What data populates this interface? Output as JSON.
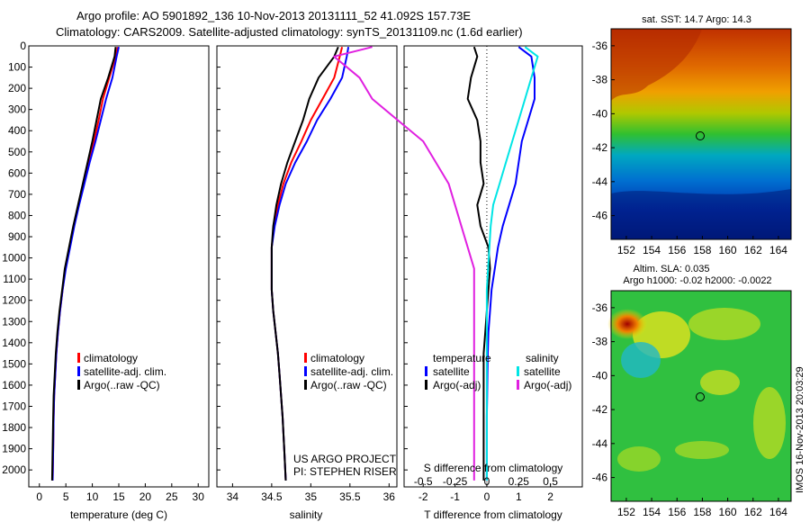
{
  "title": {
    "line1": "Argo profile: AO 5901892_136 10-Nov-2013 20131111_52 41.092S 157.73E",
    "line2": "Climatology: CARS2009. Satellite-adjusted climatology: synTS_20131109.nc (1.6d earlier)"
  },
  "colors": {
    "climatology": "#ff0000",
    "satellite": "#0000ff",
    "argo": "#000000",
    "sat_salinity": "#00e5e5",
    "argo_salinity_adj": "#e020e0"
  },
  "legend_profile": {
    "climatology": "climatology",
    "satellite": "satellite-adj. clim.",
    "argo": "Argo(..raw -QC)"
  },
  "legend_diff": {
    "temperature_header": "temperature",
    "salinity_header": "salinity",
    "t_satellite": "satellite",
    "t_argo": "Argo(-adj)",
    "s_satellite": "satellite",
    "s_argo": "Argo(-adj)"
  },
  "credits": {
    "project": "US ARGO PROJECT",
    "pi": "PI: STEPHEN RISER",
    "imos": "IMOS 16-Nov-2013 20:03:29"
  },
  "maps": {
    "sst_title": "sat. SST: 14.7 Argo: 14.3",
    "sla_title1": "Altim. SLA: 0.035",
    "sla_title2": "Argo h1000: -0.02 h2000: -0.0022",
    "x_ticks": [
      "152",
      "154",
      "156",
      "158",
      "160",
      "162",
      "164"
    ],
    "y_ticks": [
      "-36",
      "-38",
      "-40",
      "-42",
      "-44",
      "-46"
    ],
    "marker": {
      "lon": 157.73,
      "lat": -41.09
    }
  },
  "chart_data": [
    {
      "type": "line",
      "xlabel": "temperature (deg C)",
      "ylabel": "",
      "xlim": [
        -2,
        32
      ],
      "ylim": [
        2080,
        0
      ],
      "x_ticks": [
        0,
        5,
        10,
        15,
        20,
        25,
        30
      ],
      "y_ticks": [
        0,
        100,
        200,
        300,
        400,
        500,
        600,
        700,
        800,
        900,
        1000,
        1100,
        1200,
        1300,
        1400,
        1500,
        1600,
        1700,
        1800,
        1900,
        2000
      ],
      "series": [
        {
          "name": "climatology",
          "color": "#ff0000",
          "x": [
            14.8,
            14.4,
            13.2,
            12.0,
            11.2,
            10.3,
            9.3,
            8.3,
            7.4,
            6.5,
            5.7,
            4.9,
            4.4,
            3.9,
            3.5,
            3.2,
            3.0,
            2.8,
            2.7,
            2.6,
            2.5
          ],
          "y": [
            5,
            50,
            150,
            250,
            350,
            450,
            550,
            650,
            750,
            850,
            950,
            1050,
            1150,
            1250,
            1350,
            1450,
            1550,
            1650,
            1750,
            1900,
            2050
          ]
        },
        {
          "name": "satellite-adj. clim.",
          "color": "#0000ff",
          "x": [
            15.0,
            14.6,
            13.8,
            12.6,
            11.6,
            10.6,
            9.5,
            8.5,
            7.5,
            6.6,
            5.8,
            5.0,
            4.4,
            3.9,
            3.5,
            3.2,
            3.0,
            2.8,
            2.7,
            2.6,
            2.5
          ],
          "y": [
            5,
            50,
            150,
            250,
            350,
            450,
            550,
            650,
            750,
            850,
            950,
            1050,
            1150,
            1250,
            1350,
            1450,
            1550,
            1650,
            1750,
            1900,
            2050
          ]
        },
        {
          "name": "Argo(..raw -QC)",
          "color": "#000000",
          "x": [
            14.4,
            14.2,
            13.0,
            11.6,
            10.8,
            10.0,
            9.1,
            8.2,
            7.3,
            6.4,
            5.6,
            4.8,
            4.3,
            3.8,
            3.4,
            3.1,
            2.9,
            2.7,
            2.6,
            2.5,
            2.4
          ],
          "y": [
            5,
            50,
            150,
            250,
            350,
            450,
            550,
            650,
            750,
            850,
            950,
            1050,
            1150,
            1250,
            1350,
            1450,
            1550,
            1650,
            1750,
            1900,
            2050
          ]
        }
      ]
    },
    {
      "type": "line",
      "xlabel": "salinity",
      "ylabel": "",
      "xlim": [
        33.8,
        36.1
      ],
      "ylim": [
        2080,
        0
      ],
      "x_ticks": [
        34,
        34.5,
        35,
        35.5,
        36
      ],
      "series": [
        {
          "name": "climatology",
          "color": "#ff0000",
          "x": [
            35.4,
            35.37,
            35.3,
            35.15,
            35.0,
            34.88,
            34.75,
            34.65,
            34.58,
            34.53,
            34.5,
            34.5,
            34.5,
            34.52,
            34.55,
            34.58,
            34.6,
            34.62,
            34.64,
            34.66,
            34.68
          ],
          "y": [
            5,
            50,
            150,
            250,
            350,
            450,
            550,
            650,
            750,
            850,
            950,
            1050,
            1150,
            1250,
            1350,
            1450,
            1550,
            1650,
            1750,
            1900,
            2050
          ]
        },
        {
          "name": "satellite-adj. clim.",
          "color": "#0000ff",
          "x": [
            35.48,
            35.46,
            35.4,
            35.25,
            35.08,
            34.95,
            34.8,
            34.68,
            34.6,
            34.54,
            34.5,
            34.5,
            34.5,
            34.52,
            34.55,
            34.58,
            34.6,
            34.62,
            34.64,
            34.66,
            34.68
          ],
          "y": [
            5,
            50,
            150,
            250,
            350,
            450,
            550,
            650,
            750,
            850,
            950,
            1050,
            1150,
            1250,
            1350,
            1450,
            1550,
            1650,
            1750,
            1900,
            2050
          ]
        },
        {
          "name": "Argo(..raw -QC)",
          "color": "#000000",
          "x": [
            35.35,
            35.3,
            35.1,
            34.98,
            34.9,
            34.8,
            34.7,
            34.62,
            34.56,
            34.52,
            34.5,
            34.5,
            34.5,
            34.52,
            34.55,
            34.58,
            34.6,
            34.62,
            34.64,
            34.66,
            34.68
          ],
          "y": [
            5,
            50,
            150,
            250,
            350,
            450,
            550,
            650,
            750,
            850,
            950,
            1050,
            1150,
            1250,
            1350,
            1450,
            1550,
            1650,
            1750,
            1900,
            2050
          ]
        }
      ]
    },
    {
      "type": "line",
      "xlabel": "T difference from climatology",
      "xlabel2": "S difference from climatology",
      "ylabel": "",
      "xlim": [
        -2.6,
        3.0
      ],
      "xlim_s": [
        -0.65,
        0.75
      ],
      "ylim": [
        2080,
        0
      ],
      "x_ticks": [
        -2,
        -1,
        0,
        1,
        2
      ],
      "x_ticks_s": [
        "-0.5",
        "-0.25",
        "0",
        "0.25",
        "0.5"
      ],
      "x_ticks_s_values": [
        -0.5,
        -0.25,
        0,
        0.25,
        0.5
      ],
      "series": [
        {
          "name": "satellite",
          "quantity": "temperature",
          "color": "#0000ff",
          "x": [
            1.0,
            1.4,
            1.5,
            1.5,
            1.3,
            1.1,
            1.0,
            0.9,
            0.7,
            0.5,
            0.35,
            0.25,
            0.15,
            0.1,
            0.05,
            0.03,
            0.02,
            0.01,
            0.0,
            0.0,
            0.0
          ],
          "y": [
            5,
            50,
            150,
            250,
            350,
            450,
            550,
            650,
            750,
            850,
            950,
            1050,
            1150,
            1250,
            1350,
            1450,
            1550,
            1650,
            1750,
            1900,
            2050
          ]
        },
        {
          "name": "Argo(-adj)",
          "quantity": "temperature",
          "color": "#000000",
          "x": [
            -0.4,
            -0.3,
            -0.5,
            -0.6,
            -0.3,
            -0.2,
            -0.2,
            -0.1,
            -0.3,
            -0.2,
            0.05,
            0.1,
            0.05,
            0.0,
            -0.05,
            -0.1,
            -0.1,
            -0.1,
            -0.1,
            -0.1,
            -0.1
          ],
          "y": [
            5,
            50,
            150,
            250,
            350,
            450,
            550,
            650,
            750,
            850,
            950,
            1050,
            1150,
            1250,
            1350,
            1450,
            1550,
            1650,
            1750,
            1900,
            2050
          ]
        },
        {
          "name": "satellite",
          "quantity": "salinity",
          "color": "#00e5e5",
          "x": [
            0.3,
            0.4,
            0.35,
            0.3,
            0.25,
            0.2,
            0.15,
            0.1,
            0.05,
            0.03,
            0.02,
            0.01,
            0.0,
            0.0,
            0.0,
            0.0,
            0.0,
            0.0,
            0.0,
            0.0,
            0.0
          ],
          "y": [
            5,
            50,
            150,
            250,
            350,
            450,
            550,
            650,
            750,
            850,
            950,
            1050,
            1150,
            1250,
            1350,
            1450,
            1550,
            1650,
            1750,
            1900,
            2050
          ]
        },
        {
          "name": "Argo(-adj)",
          "quantity": "salinity",
          "color": "#e020e0",
          "x": [
            -0.9,
            -1.2,
            -1.0,
            -0.9,
            -0.7,
            -0.5,
            -0.4,
            -0.3,
            -0.25,
            -0.2,
            -0.15,
            -0.1,
            -0.1,
            -0.1,
            -0.1,
            -0.1,
            -0.1,
            -0.1,
            -0.1,
            -0.1,
            -0.1
          ],
          "y": [
            5,
            50,
            150,
            250,
            350,
            450,
            550,
            650,
            750,
            850,
            950,
            1050,
            1150,
            1250,
            1350,
            1450,
            1550,
            1650,
            1750,
            1900,
            2050
          ]
        }
      ]
    }
  ]
}
